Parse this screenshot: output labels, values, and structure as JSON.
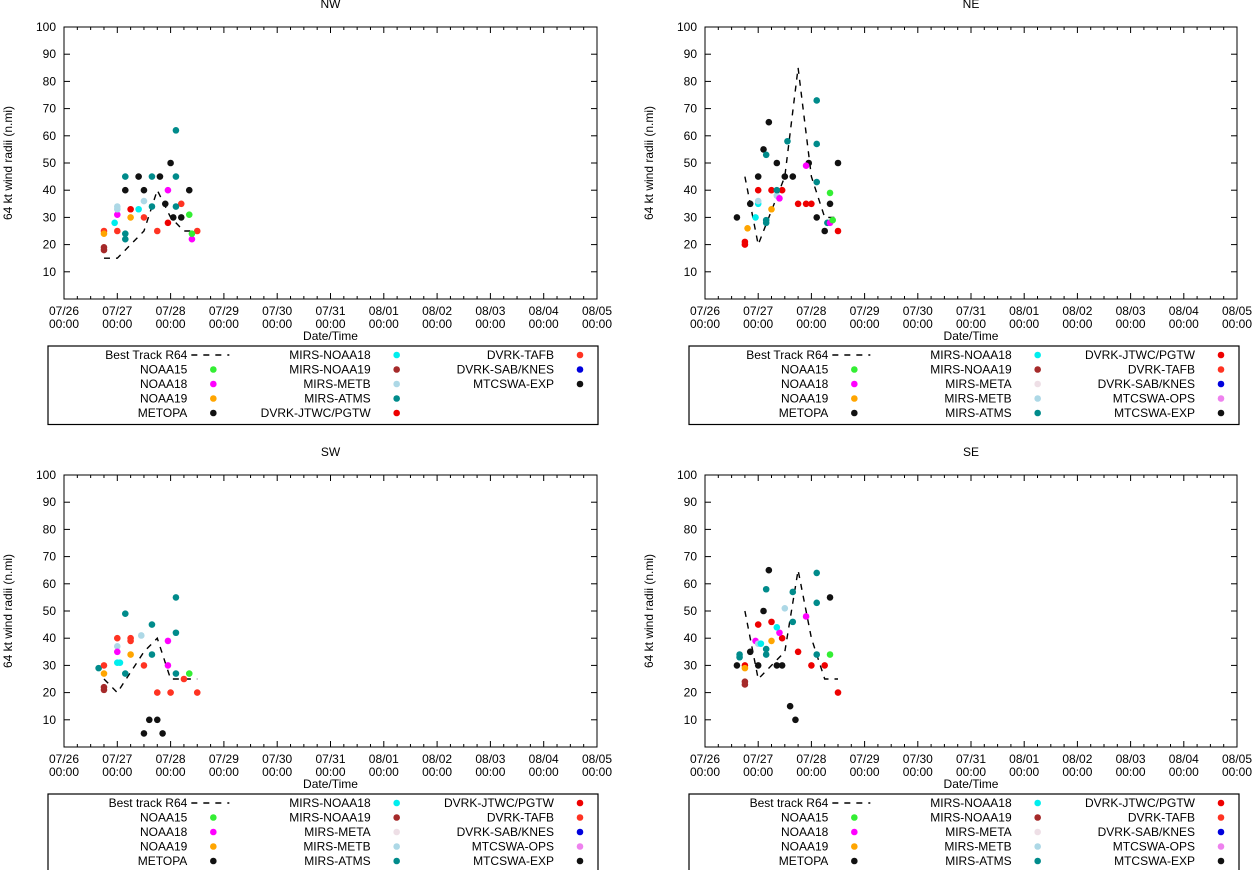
{
  "chart_data": [
    {
      "type": "scatter",
      "title": "NW",
      "xlabel": "Date/Time",
      "ylabel": "64 kt wind radii (n.mi)",
      "xlim": [
        0,
        10
      ],
      "ylim": [
        0,
        100
      ],
      "yticks": [
        10,
        20,
        30,
        40,
        50,
        60,
        70,
        80,
        90,
        100
      ],
      "xtick_labels": [
        "07/26\n00:00",
        "07/27\n00:00",
        "07/28\n00:00",
        "07/29\n00:00",
        "07/30\n00:00",
        "07/31\n00:00",
        "08/01\n00:00",
        "08/02\n00:00",
        "08/03\n00:00",
        "08/04\n00:00",
        "08/05\n00:00"
      ],
      "best_track": {
        "name": "Best Track R64",
        "x": [
          0.75,
          1.0,
          1.5,
          1.75,
          2.0,
          2.25,
          2.5
        ],
        "y": [
          15,
          15,
          25,
          40,
          30,
          25,
          25
        ]
      },
      "legend": [
        {
          "name": "Best Track R64",
          "key": "best"
        },
        {
          "name": "NOAA15",
          "key": "NOAA15"
        },
        {
          "name": "NOAA18",
          "key": "NOAA18"
        },
        {
          "name": "NOAA19",
          "key": "NOAA19"
        },
        {
          "name": "METOPA",
          "key": "METOPA"
        },
        {
          "name": "MIRS-NOAA18",
          "key": "MIRS-NOAA18"
        },
        {
          "name": "MIRS-NOAA19",
          "key": "MIRS-NOAA19"
        },
        {
          "name": "MIRS-METB",
          "key": "MIRS-METB"
        },
        {
          "name": "MIRS-ATMS",
          "key": "MIRS-ATMS"
        },
        {
          "name": "DVRK-JTWC/PGTW",
          "key": "DVRK-JTWC/PGTW"
        },
        {
          "name": "DVRK-TAFB",
          "key": "DVRK-TAFB"
        },
        {
          "name": "DVRK-SAB/KNES",
          "key": "DVRK-SAB/KNES"
        },
        {
          "name": "MTCSWA-EXP",
          "key": "MTCSWA-EXP"
        }
      ],
      "legend_rows": 5,
      "points": [
        {
          "s": "MIRS-NOAA19",
          "x": [
            0.75,
            0.75
          ],
          "y": [
            18,
            19
          ]
        },
        {
          "s": "DVRK-TAFB",
          "x": [
            0.75,
            1.0,
            1.5,
            1.75,
            2.2,
            2.5
          ],
          "y": [
            25,
            25,
            30,
            25,
            35,
            25
          ]
        },
        {
          "s": "NOAA19",
          "x": [
            0.75,
            1.25
          ],
          "y": [
            24,
            30
          ]
        },
        {
          "s": "NOAA18",
          "x": [
            1.0,
            1.95,
            2.4
          ],
          "y": [
            31,
            40,
            22
          ]
        },
        {
          "s": "MIRS-METB",
          "x": [
            1.0,
            1.0,
            1.5
          ],
          "y": [
            33,
            34,
            36
          ]
        },
        {
          "s": "MIRS-NOAA18",
          "x": [
            0.95,
            1.4
          ],
          "y": [
            28,
            33
          ]
        },
        {
          "s": "MIRS-ATMS",
          "x": [
            1.15,
            1.15,
            1.15,
            1.65,
            1.65,
            2.1,
            2.1,
            2.1
          ],
          "y": [
            22,
            24,
            45,
            34,
            45,
            45,
            34,
            62
          ]
        },
        {
          "s": "METOPA",
          "x": [
            1.15,
            1.4,
            1.5,
            1.8,
            1.9,
            2.0,
            2.05,
            2.2,
            2.35
          ],
          "y": [
            40,
            45,
            40,
            45,
            35,
            50,
            30,
            30,
            40
          ]
        },
        {
          "s": "NOAA15",
          "x": [
            2.35,
            2.4
          ],
          "y": [
            31,
            24
          ]
        },
        {
          "s": "DVRK-JTWC/PGTW",
          "x": [
            1.25,
            1.95
          ],
          "y": [
            33,
            28
          ]
        }
      ]
    },
    {
      "type": "scatter",
      "title": "NE",
      "xlabel": "Date/Time",
      "ylabel": "64 kt wind radii (n.mi)",
      "xlim": [
        0,
        10
      ],
      "ylim": [
        0,
        100
      ],
      "yticks": [
        10,
        20,
        30,
        40,
        50,
        60,
        70,
        80,
        90,
        100
      ],
      "xtick_labels": [
        "07/26\n00:00",
        "07/27\n00:00",
        "07/28\n00:00",
        "07/29\n00:00",
        "07/30\n00:00",
        "07/31\n00:00",
        "08/01\n00:00",
        "08/02\n00:00",
        "08/03\n00:00",
        "08/04\n00:00",
        "08/05\n00:00"
      ],
      "best_track": {
        "name": "Best Track R64",
        "x": [
          0.75,
          1.0,
          1.5,
          1.75,
          2.0,
          2.25,
          2.5
        ],
        "y": [
          45,
          20,
          45,
          85,
          45,
          30,
          30
        ]
      },
      "legend": [
        {
          "name": "Best Track R64",
          "key": "best"
        },
        {
          "name": "NOAA15",
          "key": "NOAA15"
        },
        {
          "name": "NOAA18",
          "key": "NOAA18"
        },
        {
          "name": "NOAA19",
          "key": "NOAA19"
        },
        {
          "name": "METOPA",
          "key": "METOPA"
        },
        {
          "name": "MIRS-NOAA18",
          "key": "MIRS-NOAA18"
        },
        {
          "name": "MIRS-NOAA19",
          "key": "MIRS-NOAA19"
        },
        {
          "name": "MIRS-META",
          "key": "MIRS-META"
        },
        {
          "name": "MIRS-METB",
          "key": "MIRS-METB"
        },
        {
          "name": "MIRS-ATMS",
          "key": "MIRS-ATMS"
        },
        {
          "name": "DVRK-JTWC/PGTW",
          "key": "DVRK-JTWC/PGTW"
        },
        {
          "name": "DVRK-TAFB",
          "key": "DVRK-TAFB"
        },
        {
          "name": "DVRK-SAB/KNES",
          "key": "DVRK-SAB/KNES"
        },
        {
          "name": "MTCSWA-OPS",
          "key": "MTCSWA-OPS"
        },
        {
          "name": "MTCSWA-EXP",
          "key": "MTCSWA-EXP"
        }
      ],
      "legend_rows": 5,
      "points": [
        {
          "s": "METOPA",
          "x": [
            0.6,
            0.85,
            1.0,
            1.1,
            1.2,
            1.35,
            1.5,
            1.65,
            1.95,
            2.1,
            2.25,
            2.35,
            2.5
          ],
          "y": [
            30,
            35,
            45,
            55,
            65,
            50,
            45,
            45,
            50,
            30,
            25,
            35,
            50
          ]
        },
        {
          "s": "DVRK-JTWC/PGTW",
          "x": [
            0.75,
            0.75,
            1.0,
            1.25,
            1.45,
            1.75,
            1.9,
            2.0,
            2.5
          ],
          "y": [
            20,
            21,
            40,
            40,
            40,
            35,
            35,
            35,
            25
          ]
        },
        {
          "s": "NOAA19",
          "x": [
            0.8,
            1.25
          ],
          "y": [
            26,
            33
          ]
        },
        {
          "s": "MIRS-NOAA18",
          "x": [
            0.95,
            1.0
          ],
          "y": [
            30,
            35
          ]
        },
        {
          "s": "MIRS-METB",
          "x": [
            1.0,
            1.35
          ],
          "y": [
            36,
            38
          ]
        },
        {
          "s": "MIRS-ATMS",
          "x": [
            1.15,
            1.15,
            1.15,
            1.35,
            1.55,
            2.1,
            2.1,
            2.1,
            2.3
          ],
          "y": [
            28,
            29,
            53,
            40,
            58,
            43,
            57,
            73,
            28
          ]
        },
        {
          "s": "NOAA18",
          "x": [
            1.4,
            1.9,
            2.35
          ],
          "y": [
            37,
            49,
            28
          ]
        },
        {
          "s": "NOAA15",
          "x": [
            2.35,
            2.4
          ],
          "y": [
            39,
            29
          ]
        }
      ]
    },
    {
      "type": "scatter",
      "title": "SW",
      "xlabel": "Date/Time",
      "ylabel": "64 kt wind radii (n.mi)",
      "xlim": [
        0,
        10
      ],
      "ylim": [
        0,
        100
      ],
      "yticks": [
        10,
        20,
        30,
        40,
        50,
        60,
        70,
        80,
        90,
        100
      ],
      "xtick_labels": [
        "07/26\n00:00",
        "07/27\n00:00",
        "07/28\n00:00",
        "07/29\n00:00",
        "07/30\n00:00",
        "07/31\n00:00",
        "08/01\n00:00",
        "08/02\n00:00",
        "08/03\n00:00",
        "08/04\n00:00",
        "08/05\n00:00"
      ],
      "best_track": {
        "name": "Best track R64",
        "x": [
          0.75,
          1.0,
          1.5,
          1.75,
          2.0,
          2.25,
          2.5
        ],
        "y": [
          25,
          20,
          35,
          40,
          25,
          25,
          25
        ]
      },
      "legend": [
        {
          "name": "Best track R64",
          "key": "best"
        },
        {
          "name": "NOAA15",
          "key": "NOAA15"
        },
        {
          "name": "NOAA18",
          "key": "NOAA18"
        },
        {
          "name": "NOAA19",
          "key": "NOAA19"
        },
        {
          "name": "METOPA",
          "key": "METOPA"
        },
        {
          "name": "MIRS-NOAA18",
          "key": "MIRS-NOAA18"
        },
        {
          "name": "MIRS-NOAA19",
          "key": "MIRS-NOAA19"
        },
        {
          "name": "MIRS-META",
          "key": "MIRS-META"
        },
        {
          "name": "MIRS-METB",
          "key": "MIRS-METB"
        },
        {
          "name": "MIRS-ATMS",
          "key": "MIRS-ATMS"
        },
        {
          "name": "DVRK-JTWC/PGTW",
          "key": "DVRK-JTWC/PGTW"
        },
        {
          "name": "DVRK-TAFB",
          "key": "DVRK-TAFB"
        },
        {
          "name": "DVRK-SAB/KNES",
          "key": "DVRK-SAB/KNES"
        },
        {
          "name": "MTCSWA-OPS",
          "key": "MTCSWA-OPS"
        },
        {
          "name": "MTCSWA-EXP",
          "key": "MTCSWA-EXP"
        }
      ],
      "legend_rows": 5,
      "points": [
        {
          "s": "MIRS-ATMS",
          "x": [
            0.65,
            1.15,
            1.15,
            1.65,
            1.65,
            2.1,
            2.1,
            2.1
          ],
          "y": [
            29,
            27,
            49,
            34,
            45,
            27,
            42,
            55
          ]
        },
        {
          "s": "DVRK-TAFB",
          "x": [
            0.75,
            1.0,
            1.25,
            1.25,
            1.5,
            1.75,
            2.0,
            2.25,
            2.5
          ],
          "y": [
            30,
            40,
            39,
            40,
            30,
            20,
            20,
            25,
            20
          ]
        },
        {
          "s": "MIRS-NOAA19",
          "x": [
            0.75,
            0.75
          ],
          "y": [
            21,
            22
          ]
        },
        {
          "s": "NOAA19",
          "x": [
            0.75,
            1.25
          ],
          "y": [
            27,
            34
          ]
        },
        {
          "s": "MIRS-NOAA18",
          "x": [
            1.0,
            1.05
          ],
          "y": [
            31,
            31
          ]
        },
        {
          "s": "MIRS-METB",
          "x": [
            1.0,
            1.45
          ],
          "y": [
            37,
            41
          ]
        },
        {
          "s": "NOAA18",
          "x": [
            1.0,
            1.95,
            1.95
          ],
          "y": [
            35,
            30,
            39
          ]
        },
        {
          "s": "METOPA",
          "x": [
            1.5,
            1.6,
            1.75,
            1.85
          ],
          "y": [
            5,
            10,
            10,
            5
          ]
        },
        {
          "s": "NOAA15",
          "x": [
            2.35
          ],
          "y": [
            27
          ]
        }
      ]
    },
    {
      "type": "scatter",
      "title": "SE",
      "xlabel": "Date/Time",
      "ylabel": "64 kt wind radii (n.mi)",
      "xlim": [
        0,
        10
      ],
      "ylim": [
        0,
        100
      ],
      "yticks": [
        10,
        20,
        30,
        40,
        50,
        60,
        70,
        80,
        90,
        100
      ],
      "xtick_labels": [
        "07/26\n00:00",
        "07/27\n00:00",
        "07/28\n00:00",
        "07/29\n00:00",
        "07/30\n00:00",
        "07/31\n00:00",
        "08/01\n00:00",
        "08/02\n00:00",
        "08/03\n00:00",
        "08/04\n00:00",
        "08/05\n00:00"
      ],
      "best_track": {
        "name": "Best track R64",
        "x": [
          0.75,
          1.0,
          1.5,
          1.75,
          2.0,
          2.25,
          2.5
        ],
        "y": [
          50,
          25,
          35,
          65,
          40,
          25,
          25
        ]
      },
      "legend": [
        {
          "name": "Best track R64",
          "key": "best"
        },
        {
          "name": "NOAA15",
          "key": "NOAA15"
        },
        {
          "name": "NOAA18",
          "key": "NOAA18"
        },
        {
          "name": "NOAA19",
          "key": "NOAA19"
        },
        {
          "name": "METOPA",
          "key": "METOPA"
        },
        {
          "name": "MIRS-NOAA18",
          "key": "MIRS-NOAA18"
        },
        {
          "name": "MIRS-NOAA19",
          "key": "MIRS-NOAA19"
        },
        {
          "name": "MIRS-META",
          "key": "MIRS-META"
        },
        {
          "name": "MIRS-METB",
          "key": "MIRS-METB"
        },
        {
          "name": "MIRS-ATMS",
          "key": "MIRS-ATMS"
        },
        {
          "name": "DVRK-JTWC/PGTW",
          "key": "DVRK-JTWC/PGTW"
        },
        {
          "name": "DVRK-TAFB",
          "key": "DVRK-TAFB"
        },
        {
          "name": "DVRK-SAB/KNES",
          "key": "DVRK-SAB/KNES"
        },
        {
          "name": "MTCSWA-OPS",
          "key": "MTCSWA-OPS"
        },
        {
          "name": "MTCSWA-EXP",
          "key": "MTCSWA-EXP"
        }
      ],
      "legend_rows": 5,
      "points": [
        {
          "s": "METOPA",
          "x": [
            0.6,
            0.85,
            1.0,
            1.1,
            1.2,
            1.35,
            1.45,
            1.6,
            1.7,
            2.35
          ],
          "y": [
            30,
            35,
            30,
            50,
            65,
            30,
            30,
            15,
            10,
            55
          ]
        },
        {
          "s": "MIRS-ATMS",
          "x": [
            0.65,
            0.65,
            1.15,
            1.15,
            1.15,
            1.65,
            1.65,
            2.1,
            2.1,
            2.1
          ],
          "y": [
            33,
            34,
            34,
            36,
            58,
            46,
            57,
            34,
            53,
            64
          ]
        },
        {
          "s": "DVRK-JTWC/PGTW",
          "x": [
            0.75,
            1.0,
            1.25,
            1.45,
            1.75,
            2.0,
            2.25,
            2.5
          ],
          "y": [
            30,
            45,
            46,
            40,
            35,
            30,
            30,
            20
          ]
        },
        {
          "s": "MIRS-NOAA19",
          "x": [
            0.75,
            0.75
          ],
          "y": [
            23,
            24
          ]
        },
        {
          "s": "NOAA19",
          "x": [
            0.75,
            1.25
          ],
          "y": [
            29,
            39
          ]
        },
        {
          "s": "NOAA18",
          "x": [
            0.95,
            1.4,
            1.9
          ],
          "y": [
            39,
            42,
            48
          ]
        },
        {
          "s": "MIRS-METB",
          "x": [
            1.0,
            1.5
          ],
          "y": [
            38,
            51
          ]
        },
        {
          "s": "MIRS-NOAA18",
          "x": [
            1.05,
            1.35
          ],
          "y": [
            38,
            44
          ]
        },
        {
          "s": "NOAA15",
          "x": [
            2.35
          ],
          "y": [
            34
          ]
        }
      ]
    }
  ],
  "colors": {
    "NOAA15": "#33ee33",
    "NOAA18": "#ff00ff",
    "NOAA19": "#ffa500",
    "METOPA": "#111111",
    "MIRS-NOAA18": "#00eeee",
    "MIRS-NOAA19": "#a52a2a",
    "MIRS-META": "#eedfe6",
    "MIRS-METB": "#add8e6",
    "MIRS-ATMS": "#008b8b",
    "DVRK-JTWC/PGTW": "#ee0000",
    "DVRK-TAFB": "#ff3322",
    "DVRK-SAB/KNES": "#0000dd",
    "MTCSWA-OPS": "#ee82ee",
    "MTCSWA-EXP": "#111111"
  }
}
